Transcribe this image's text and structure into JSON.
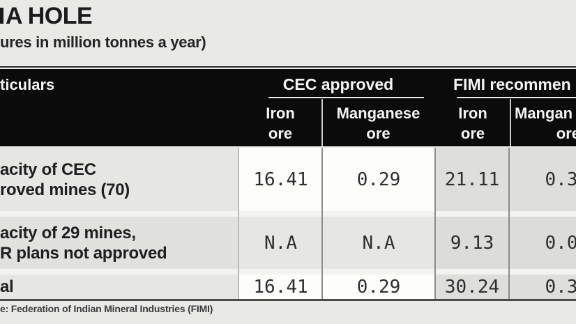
{
  "header": {
    "title": "A HOLE",
    "subtitle": "ures in million tonnes a year)"
  },
  "table": {
    "particulars_header": "ticulars",
    "group1_label": "CEC approved",
    "group2_label": "FIMI recommen",
    "col1_line1": "Iron",
    "col1_line2": "ore",
    "col2_line1": "Manganese",
    "col2_line2": "ore",
    "col3_line1": "Iron",
    "col3_line2": "ore",
    "col4_line1": "Mangan",
    "col4_line2": "ore",
    "rows": [
      {
        "label_line1": "acity of CEC",
        "label_line2": "roved mines (70)",
        "v1": "16.41",
        "v2": "0.29",
        "v3": "21.11",
        "v4": "0.3"
      },
      {
        "label_line1": "acity of 29 mines,",
        "label_line2": "R plans not approved",
        "v1": "N.A",
        "v2": "N.A",
        "v3": "9.13",
        "v4": "0.0"
      },
      {
        "label_line1": "al",
        "label_line2": "",
        "v1": "16.41",
        "v2": "0.29",
        "v3": "30.24",
        "v4": "0.3"
      }
    ]
  },
  "footer": {
    "source": "e: Federation of Indian Mineral Industries (FIMI)"
  },
  "colors": {
    "page_bg": "#e9e9e7",
    "header_band": "#0b0b0b",
    "white_cell": "#fdfdfc",
    "gray_cell": "#dededc",
    "text_dark": "#1b1b1b",
    "header_text": "#f4f4f4"
  },
  "chart_data": {
    "type": "table",
    "title": "A HOLE",
    "subtitle": "ures in million tonnes a year)",
    "column_groups": [
      "CEC approved",
      "FIMI recommen"
    ],
    "columns": [
      "Iron ore (CEC)",
      "Manganese ore (CEC)",
      "Iron ore (FIMI)",
      "Mangan ore (FIMI)"
    ],
    "rows": [
      {
        "particulars": "acity of CEC roved mines (70)",
        "values": [
          "16.41",
          "0.29",
          "21.11",
          "0.3"
        ]
      },
      {
        "particulars": "acity of 29 mines, R plans not approved",
        "values": [
          "N.A",
          "N.A",
          "9.13",
          "0.0"
        ]
      },
      {
        "particulars": "al",
        "values": [
          "16.41",
          "0.29",
          "30.24",
          "0.3"
        ]
      }
    ],
    "source": "e: Federation of Indian Mineral Industries (FIMI)"
  }
}
